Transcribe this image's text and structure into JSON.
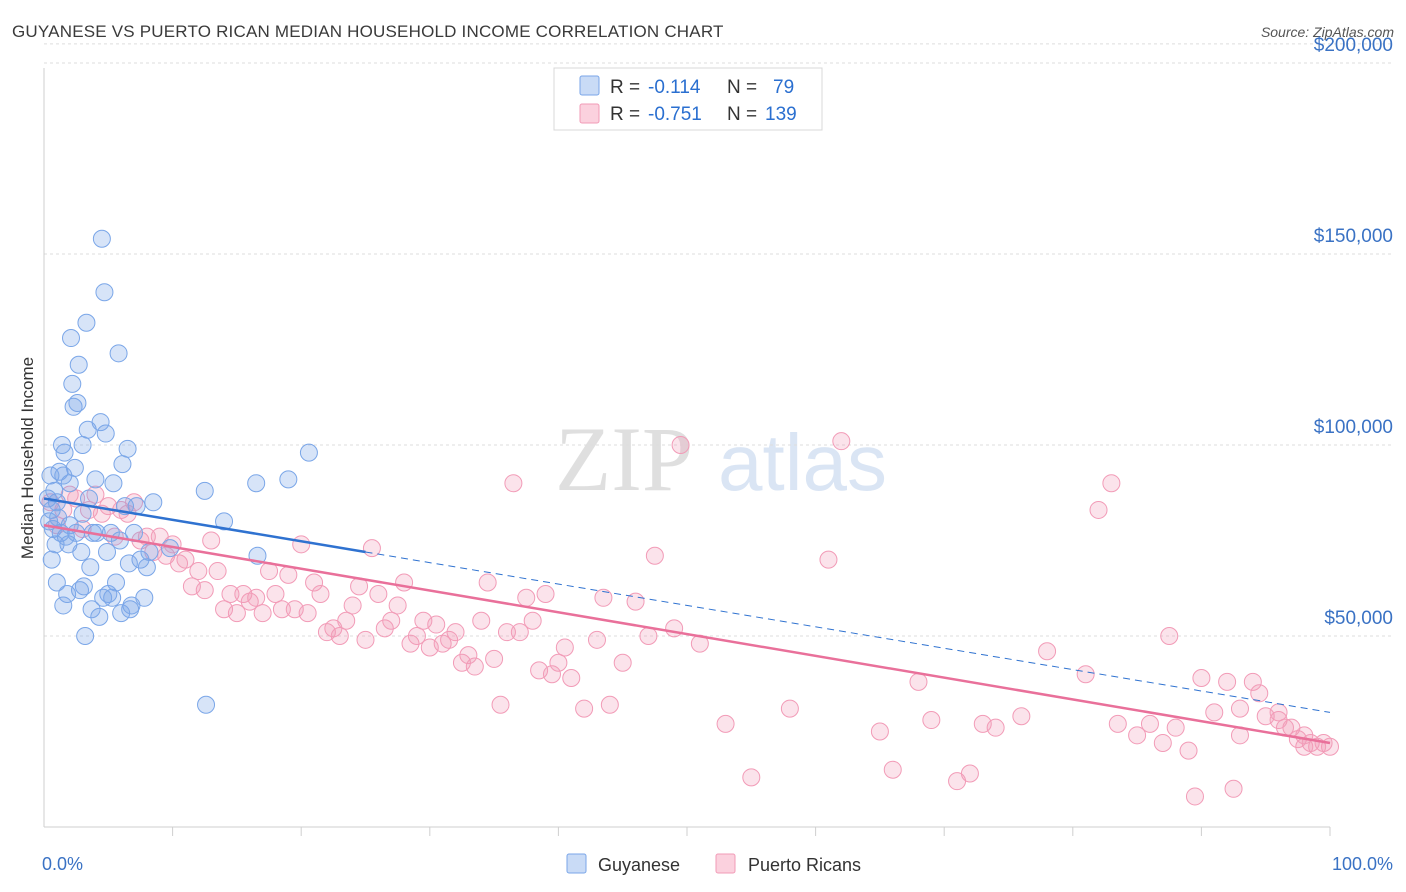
{
  "header": {
    "title": "GUYANESE VS PUERTO RICAN MEDIAN HOUSEHOLD INCOME CORRELATION CHART",
    "source": "Source: ZipAtlas.com"
  },
  "watermark": {
    "zip": "ZIP",
    "atlas": "atlas"
  },
  "legend": {
    "r_label": "R =",
    "n_label": "N =",
    "rows": [
      {
        "series": "Guyanese",
        "r": "-0.114",
        "n": "79",
        "color": "#7aa6e8"
      },
      {
        "series": "Puerto Ricans",
        "r": "-0.751",
        "n": "139",
        "color": "#f29bb7"
      }
    ]
  },
  "bottom_legend": [
    "Guyanese",
    "Puerto Ricans"
  ],
  "chart_data": {
    "type": "scatter",
    "title": "GUYANESE VS PUERTO RICAN MEDIAN HOUSEHOLD INCOME CORRELATION CHART",
    "xlabel": "",
    "ylabel": "Median Household Income",
    "xlim": [
      0,
      100
    ],
    "ylim": [
      0,
      210000
    ],
    "x_tick_labels": [
      "0.0%",
      "100.0%"
    ],
    "y_ticks": [
      50000,
      100000,
      150000,
      200000
    ],
    "y_tick_labels": [
      "$50,000",
      "$100,000",
      "$150,000",
      "$200,000"
    ],
    "grid": true,
    "series": [
      {
        "name": "Guyanese",
        "color": "#7aa6e8",
        "r": -0.114,
        "n": 79,
        "trend_solid": [
          [
            0,
            86000
          ],
          [
            25,
            72000
          ]
        ],
        "trend_dashed": [
          [
            25,
            72000
          ],
          [
            100,
            30000
          ]
        ],
        "points": [
          [
            0.3,
            86000
          ],
          [
            0.4,
            80000
          ],
          [
            0.5,
            92000
          ],
          [
            0.6,
            83000
          ],
          [
            0.7,
            78000
          ],
          [
            0.8,
            88000
          ],
          [
            0.9,
            74000
          ],
          [
            1.0,
            85000
          ],
          [
            1.1,
            81000
          ],
          [
            1.2,
            93000
          ],
          [
            1.3,
            77000
          ],
          [
            1.4,
            100000
          ],
          [
            1.5,
            92000
          ],
          [
            1.6,
            98000
          ],
          [
            1.7,
            76000
          ],
          [
            1.8,
            61000
          ],
          [
            1.9,
            74000
          ],
          [
            2.0,
            79000
          ],
          [
            2.1,
            128000
          ],
          [
            2.2,
            116000
          ],
          [
            2.3,
            110000
          ],
          [
            2.4,
            94000
          ],
          [
            2.5,
            77000
          ],
          [
            2.6,
            111000
          ],
          [
            2.7,
            121000
          ],
          [
            2.8,
            62000
          ],
          [
            2.9,
            72000
          ],
          [
            3.0,
            100000
          ],
          [
            3.1,
            63000
          ],
          [
            3.2,
            50000
          ],
          [
            3.3,
            132000
          ],
          [
            3.4,
            104000
          ],
          [
            3.5,
            86000
          ],
          [
            3.6,
            68000
          ],
          [
            3.7,
            57000
          ],
          [
            3.8,
            77000
          ],
          [
            4.0,
            91000
          ],
          [
            4.1,
            77000
          ],
          [
            4.3,
            55000
          ],
          [
            4.4,
            106000
          ],
          [
            4.5,
            154000
          ],
          [
            4.6,
            60000
          ],
          [
            4.7,
            140000
          ],
          [
            4.8,
            103000
          ],
          [
            4.9,
            72000
          ],
          [
            5.0,
            61000
          ],
          [
            5.2,
            77000
          ],
          [
            5.3,
            60000
          ],
          [
            5.4,
            90000
          ],
          [
            5.6,
            64000
          ],
          [
            5.8,
            124000
          ],
          [
            5.9,
            75000
          ],
          [
            6.0,
            56000
          ],
          [
            6.1,
            95000
          ],
          [
            6.3,
            84000
          ],
          [
            6.5,
            99000
          ],
          [
            6.6,
            69000
          ],
          [
            6.7,
            57000
          ],
          [
            6.8,
            58000
          ],
          [
            7.0,
            77000
          ],
          [
            7.2,
            84000
          ],
          [
            7.5,
            70000
          ],
          [
            7.8,
            60000
          ],
          [
            8.0,
            68000
          ],
          [
            8.2,
            72000
          ],
          [
            8.5,
            85000
          ],
          [
            9.8,
            73000
          ],
          [
            12.5,
            88000
          ],
          [
            12.6,
            32000
          ],
          [
            14.0,
            80000
          ],
          [
            16.5,
            90000
          ],
          [
            16.6,
            71000
          ],
          [
            19.0,
            91000
          ],
          [
            20.6,
            98000
          ],
          [
            0.6,
            70000
          ],
          [
            1.0,
            64000
          ],
          [
            2.0,
            90000
          ],
          [
            3.0,
            82000
          ],
          [
            1.5,
            58000
          ]
        ]
      },
      {
        "name": "Puerto Ricans",
        "color": "#f29bb7",
        "r": -0.751,
        "n": 139,
        "trend_solid": [
          [
            0,
            79000
          ],
          [
            100,
            22000
          ]
        ],
        "points": [
          [
            0.5,
            85000
          ],
          [
            1.0,
            79000
          ],
          [
            1.5,
            83000
          ],
          [
            2.0,
            87000
          ],
          [
            2.5,
            86000
          ],
          [
            3.0,
            78000
          ],
          [
            3.5,
            83000
          ],
          [
            4.0,
            87000
          ],
          [
            4.5,
            82000
          ],
          [
            5.0,
            84000
          ],
          [
            5.5,
            76000
          ],
          [
            6.0,
            83000
          ],
          [
            6.5,
            82000
          ],
          [
            7.0,
            85000
          ],
          [
            7.5,
            75000
          ],
          [
            8.0,
            76000
          ],
          [
            8.5,
            72000
          ],
          [
            9.0,
            76000
          ],
          [
            9.5,
            71000
          ],
          [
            10.0,
            74000
          ],
          [
            10.5,
            69000
          ],
          [
            11.0,
            70000
          ],
          [
            11.5,
            63000
          ],
          [
            12.0,
            67000
          ],
          [
            12.5,
            62000
          ],
          [
            13.0,
            75000
          ],
          [
            13.5,
            67000
          ],
          [
            14.0,
            57000
          ],
          [
            14.5,
            61000
          ],
          [
            15.0,
            56000
          ],
          [
            15.5,
            61000
          ],
          [
            16.0,
            59000
          ],
          [
            16.5,
            60000
          ],
          [
            17.0,
            56000
          ],
          [
            17.5,
            67000
          ],
          [
            18.0,
            61000
          ],
          [
            18.5,
            57000
          ],
          [
            19.0,
            66000
          ],
          [
            19.5,
            57000
          ],
          [
            20.0,
            74000
          ],
          [
            20.5,
            56000
          ],
          [
            21.0,
            64000
          ],
          [
            21.5,
            61000
          ],
          [
            22.0,
            51000
          ],
          [
            22.5,
            52000
          ],
          [
            23.0,
            50000
          ],
          [
            23.5,
            54000
          ],
          [
            24.0,
            58000
          ],
          [
            24.5,
            63000
          ],
          [
            25.0,
            49000
          ],
          [
            25.5,
            73000
          ],
          [
            26.0,
            61000
          ],
          [
            26.5,
            52000
          ],
          [
            27.0,
            54000
          ],
          [
            27.5,
            58000
          ],
          [
            28.0,
            64000
          ],
          [
            28.5,
            48000
          ],
          [
            29.0,
            50000
          ],
          [
            29.5,
            54000
          ],
          [
            30.0,
            47000
          ],
          [
            30.5,
            53000
          ],
          [
            31.0,
            48000
          ],
          [
            31.5,
            49000
          ],
          [
            32.0,
            51000
          ],
          [
            32.5,
            43000
          ],
          [
            33.0,
            45000
          ],
          [
            33.5,
            42000
          ],
          [
            34.0,
            54000
          ],
          [
            34.5,
            64000
          ],
          [
            35.0,
            44000
          ],
          [
            35.5,
            32000
          ],
          [
            36.0,
            51000
          ],
          [
            36.5,
            90000
          ],
          [
            37.0,
            51000
          ],
          [
            37.5,
            60000
          ],
          [
            38.0,
            54000
          ],
          [
            38.5,
            41000
          ],
          [
            39.0,
            61000
          ],
          [
            39.5,
            40000
          ],
          [
            40.0,
            43000
          ],
          [
            40.5,
            47000
          ],
          [
            41.0,
            39000
          ],
          [
            42.0,
            31000
          ],
          [
            43.0,
            49000
          ],
          [
            43.5,
            60000
          ],
          [
            44.0,
            32000
          ],
          [
            45.0,
            43000
          ],
          [
            46.0,
            59000
          ],
          [
            47.0,
            50000
          ],
          [
            47.5,
            71000
          ],
          [
            49.0,
            52000
          ],
          [
            49.5,
            100000
          ],
          [
            51.0,
            48000
          ],
          [
            53.0,
            27000
          ],
          [
            55.0,
            13000
          ],
          [
            58.0,
            31000
          ],
          [
            61.0,
            70000
          ],
          [
            62.0,
            101000
          ],
          [
            65.0,
            25000
          ],
          [
            66.0,
            15000
          ],
          [
            68.0,
            38000
          ],
          [
            69.0,
            28000
          ],
          [
            71.0,
            12000
          ],
          [
            72.0,
            14000
          ],
          [
            73.0,
            27000
          ],
          [
            74.0,
            26000
          ],
          [
            76.0,
            29000
          ],
          [
            78.0,
            46000
          ],
          [
            81.0,
            40000
          ],
          [
            82.0,
            83000
          ],
          [
            83.0,
            90000
          ],
          [
            83.5,
            27000
          ],
          [
            85.0,
            24000
          ],
          [
            86.0,
            27000
          ],
          [
            87.0,
            22000
          ],
          [
            87.5,
            50000
          ],
          [
            88.0,
            26000
          ],
          [
            89.0,
            20000
          ],
          [
            89.5,
            8000
          ],
          [
            90.0,
            39000
          ],
          [
            91.0,
            30000
          ],
          [
            92.0,
            38000
          ],
          [
            92.5,
            10000
          ],
          [
            93.0,
            24000
          ],
          [
            94.0,
            38000
          ],
          [
            94.5,
            35000
          ],
          [
            95.0,
            29000
          ],
          [
            96.0,
            28000
          ],
          [
            96.5,
            26000
          ],
          [
            97.0,
            26000
          ],
          [
            97.5,
            23000
          ],
          [
            98.0,
            24000
          ],
          [
            98.5,
            22000
          ],
          [
            99.0,
            21000
          ],
          [
            99.5,
            22000
          ],
          [
            100.0,
            21000
          ],
          [
            96.0,
            30000
          ],
          [
            93.0,
            31000
          ],
          [
            98.0,
            21000
          ]
        ]
      }
    ]
  }
}
